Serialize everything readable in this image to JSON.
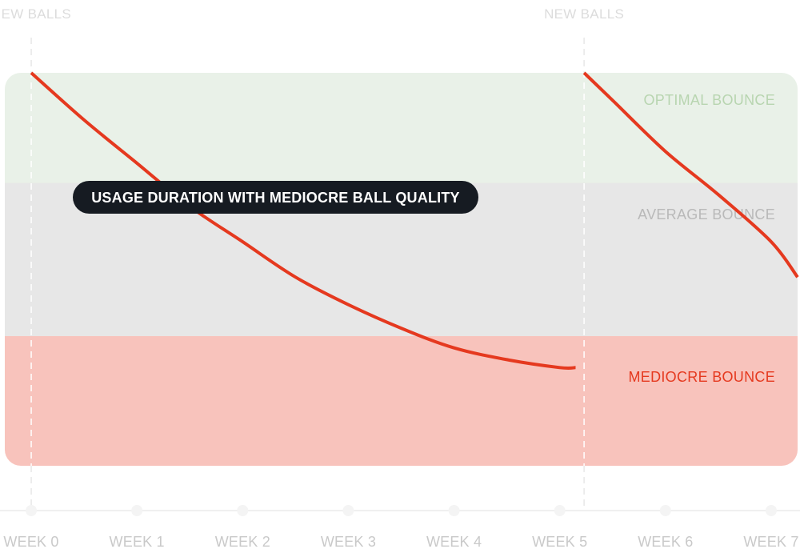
{
  "chart_data": {
    "type": "line",
    "x_ticks": [
      "WEEK 0",
      "WEEK 1",
      "WEEK 2",
      "WEEK 3",
      "WEEK 4",
      "WEEK 5",
      "WEEK 6",
      "WEEK 7"
    ],
    "xlim": [
      -0.25,
      7.25
    ],
    "ylim": [
      0,
      1
    ],
    "zones": [
      {
        "label": "OPTIMAL BOUNCE",
        "from": 0.72,
        "to": 1.0,
        "fill": "#e9f1e8",
        "text_color": "#b8d5b0"
      },
      {
        "label": "AVERAGE BOUNCE",
        "from": 0.33,
        "to": 0.72,
        "fill": "#e7e7e7",
        "text_color": "#b9b9b9"
      },
      {
        "label": "MEDIOCRE BOUNCE",
        "from": 0.0,
        "to": 0.33,
        "fill": "#f8c3bc",
        "text_color": "#e5391f"
      }
    ],
    "markers": [
      {
        "label": "NEW BALLS",
        "x": 0
      },
      {
        "label": "NEW BALLS",
        "x": 5.23
      }
    ],
    "series": [
      {
        "x": [
          0,
          0.5,
          1,
          1.5,
          2,
          2.5,
          3,
          3.5,
          4,
          4.5,
          5,
          5.15
        ],
        "y": [
          1.0,
          0.88,
          0.77,
          0.66,
          0.57,
          0.48,
          0.41,
          0.35,
          0.3,
          0.27,
          0.25,
          0.25
        ]
      },
      {
        "x": [
          5.23,
          5.5,
          6.0,
          6.5,
          7.0,
          7.25
        ],
        "y": [
          1.0,
          0.93,
          0.8,
          0.69,
          0.57,
          0.48
        ]
      }
    ],
    "line_color": "#e5391f",
    "annotation": "USAGE DURATION WITH MEDIOCRE BALL QUALITY",
    "grid": false,
    "legend": "none"
  }
}
